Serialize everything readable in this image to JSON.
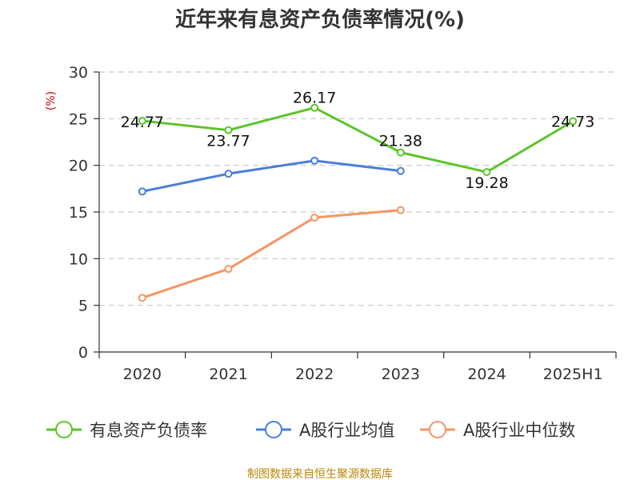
{
  "chart_data": {
    "type": "line",
    "title": "近年来有息资产负债率情况(%)",
    "xlabel": "",
    "ylabel": "(%)",
    "categories": [
      "2020",
      "2021",
      "2022",
      "2023",
      "2024",
      "2025H1"
    ],
    "ylim": [
      0,
      30
    ],
    "yticks": [
      0,
      5,
      10,
      15,
      20,
      25,
      30
    ],
    "grid": true,
    "legend_position": "bottom",
    "series": [
      {
        "name": "有息资产负债率",
        "color": "#5cc42a",
        "values": [
          24.77,
          23.77,
          26.17,
          21.38,
          19.28,
          24.73
        ],
        "labels": [
          "24.77",
          "23.77",
          "26.17",
          "21.38",
          "19.28",
          "24.73"
        ]
      },
      {
        "name": "A股行业均值",
        "color": "#4a7fd6",
        "values": [
          17.2,
          19.1,
          20.5,
          19.4,
          null,
          null
        ],
        "labels": []
      },
      {
        "name": "A股行业中位数",
        "color": "#f59563",
        "values": [
          5.8,
          8.9,
          14.4,
          15.2,
          null,
          null
        ],
        "labels": []
      }
    ],
    "source": "制图数据来自恒生聚源数据库"
  }
}
